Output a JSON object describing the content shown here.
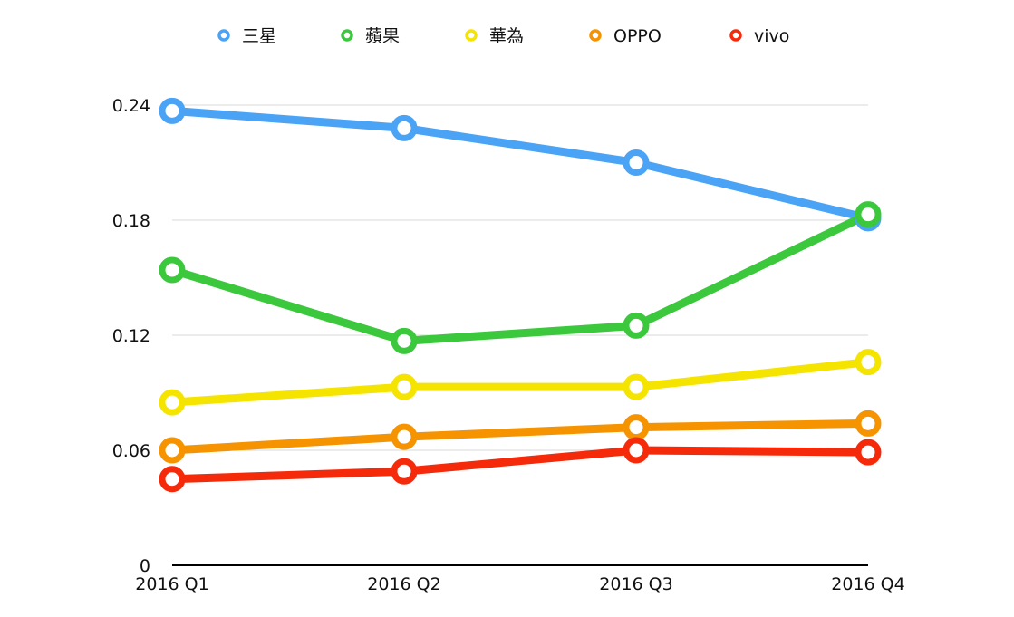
{
  "chart_data": {
    "type": "line",
    "categories": [
      "2016 Q1",
      "2016 Q2",
      "2016 Q3",
      "2016 Q4"
    ],
    "series": [
      {
        "name": "三星",
        "color": "#4aa3f5",
        "values": [
          0.237,
          0.228,
          0.21,
          0.181
        ]
      },
      {
        "name": "蘋果",
        "color": "#3cc83c",
        "values": [
          0.154,
          0.117,
          0.125,
          0.183
        ]
      },
      {
        "name": "華為",
        "color": "#f5e400",
        "values": [
          0.085,
          0.093,
          0.093,
          0.106
        ]
      },
      {
        "name": "OPPO",
        "color": "#f59300",
        "values": [
          0.06,
          0.067,
          0.072,
          0.074
        ]
      },
      {
        "name": "vivo",
        "color": "#f52a0a",
        "values": [
          0.045,
          0.049,
          0.06,
          0.059
        ]
      }
    ],
    "yticks": [
      0,
      0.06,
      0.12,
      0.18,
      0.24
    ],
    "ytick_labels": [
      "0",
      "0.06",
      "0.12",
      "0.18",
      "0.24"
    ],
    "ylim": [
      0,
      0.24
    ],
    "title": "",
    "xlabel": "",
    "ylabel": "",
    "grid": true,
    "legend_position": "top"
  }
}
